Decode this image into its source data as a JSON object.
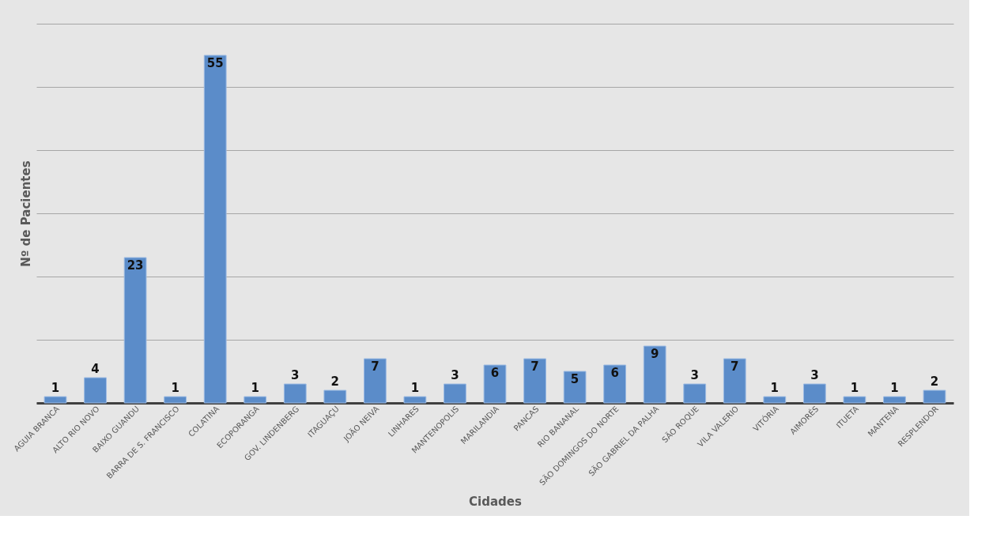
{
  "chart_data": {
    "type": "bar",
    "xlabel": "Cidades",
    "ylabel": "Nº de Pacientes",
    "categories": [
      "AGUIA BRANCA",
      "ALTO RIO NOVO",
      "BAIXO GUANDU",
      "BARRA DE S. FRANCISCO",
      "COLATINA",
      "ECOPORANGA",
      "GOV. LINDENBERG",
      "ITAGUAÇU",
      "JOÃO NEIVA",
      "LINHARES",
      "MANTENOPOLIS",
      "MARILANDIA",
      "PANCAS",
      "RIO BANANAL",
      "SÃO DOMINGOS DO NORTE",
      "SÃO GABRIEL DA PALHA",
      "SÃO ROQUE",
      "VILA VALERIO",
      "VITÓRIA",
      "AIMORÉS",
      "ITUETA",
      "MANTENA",
      "RESPLENDOR"
    ],
    "values": [
      1,
      4,
      23,
      1,
      55,
      1,
      3,
      2,
      7,
      1,
      3,
      6,
      7,
      5,
      6,
      9,
      3,
      7,
      1,
      3,
      1,
      1,
      2
    ],
    "color": "#5b8cc9",
    "ylim": [
      0,
      60
    ],
    "yticks": [
      {
        "value": 0,
        "label": null
      },
      {
        "value": 10,
        "label": null
      },
      {
        "value": 20,
        "label": null
      },
      {
        "value": 30,
        "label": null
      },
      {
        "value": 40,
        "label": null
      },
      {
        "value": 50,
        "label": null
      },
      {
        "value": 60,
        "label": null
      }
    ],
    "grid": "y",
    "tick_labels": "x",
    "data_labels": true
  }
}
